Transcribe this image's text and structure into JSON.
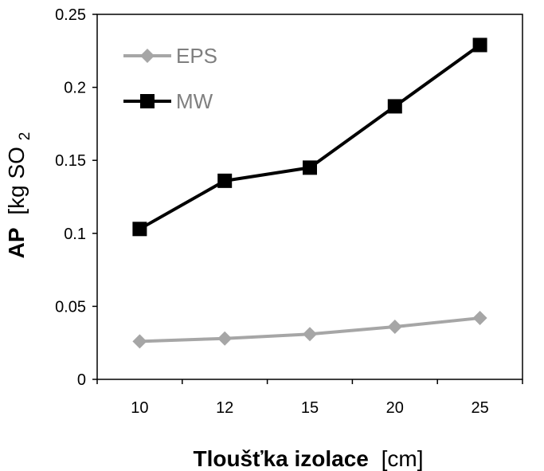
{
  "chart_data": {
    "type": "line",
    "title": "",
    "categories": [
      "10",
      "12",
      "15",
      "20",
      "25"
    ],
    "series": [
      {
        "name": "EPS",
        "values": [
          0.026,
          0.028,
          0.031,
          0.036,
          0.042
        ],
        "color": "#a6a6a6",
        "marker": "diamond"
      },
      {
        "name": "MW",
        "values": [
          0.103,
          0.136,
          0.145,
          0.187,
          0.229
        ],
        "color": "#000000",
        "marker": "square"
      }
    ],
    "ylim": [
      0,
      0.25
    ],
    "yticks": [
      "0",
      "0.05",
      "0.1",
      "0.15",
      "0.2",
      "0.25"
    ],
    "xlabel": {
      "bold": "Tloušťka izolace",
      "unit": "[cm]"
    },
    "ylabel": {
      "bold": "AP",
      "unit": "[kg SO",
      "subscript": "2"
    },
    "grid": false,
    "legend_position": "top-left"
  }
}
